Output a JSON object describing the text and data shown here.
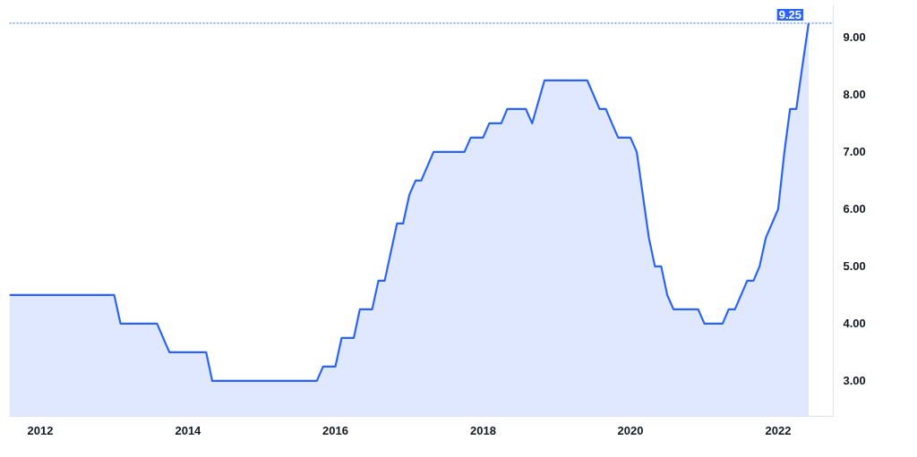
{
  "chart_data": {
    "type": "area",
    "color": "#2962ff",
    "x": [
      "2011-08",
      "2013-01",
      "2013-02",
      "2013-08",
      "2013-10",
      "2014-04",
      "2014-05",
      "2015-10",
      "2015-11",
      "2016-01",
      "2016-02",
      "2016-04",
      "2016-05",
      "2016-07",
      "2016-08",
      "2016-09",
      "2016-11",
      "2016-12",
      "2017-01",
      "2017-02",
      "2017-03",
      "2017-05",
      "2017-10",
      "2017-11",
      "2018-01",
      "2018-02",
      "2018-04",
      "2018-05",
      "2018-08",
      "2018-09",
      "2018-11",
      "2019-06",
      "2019-08",
      "2019-09",
      "2019-10",
      "2019-11",
      "2020-01",
      "2020-02",
      "2020-04",
      "2020-05",
      "2020-06",
      "2020-07",
      "2020-08",
      "2020-12",
      "2021-01",
      "2021-04",
      "2021-05",
      "2021-06",
      "2021-08",
      "2021-09",
      "2021-10",
      "2021-11",
      "2022-01",
      "2022-02",
      "2022-03",
      "2022-04",
      "2022-05",
      "2022-06"
    ],
    "values": [
      4.5,
      4.5,
      4.0,
      4.0,
      3.5,
      3.5,
      3.0,
      3.0,
      3.25,
      3.25,
      3.75,
      3.75,
      4.25,
      4.25,
      4.75,
      4.75,
      5.75,
      5.75,
      6.25,
      6.5,
      6.5,
      7.0,
      7.0,
      7.25,
      7.25,
      7.5,
      7.5,
      7.75,
      7.75,
      7.5,
      8.25,
      8.25,
      7.75,
      7.75,
      7.5,
      7.25,
      7.25,
      7.0,
      5.5,
      5.0,
      5.0,
      4.5,
      4.25,
      4.25,
      4.0,
      4.0,
      4.25,
      4.25,
      4.75,
      4.75,
      5.0,
      5.5,
      6.0,
      7.0,
      7.75,
      7.75,
      8.5,
      9.25
    ],
    "xlim": [
      "2011-08",
      "2022-10"
    ],
    "xticks": [
      "2012",
      "2014",
      "2016",
      "2018",
      "2020",
      "2022"
    ],
    "ylim": [
      2.38,
      9.57
    ],
    "yticks": [
      {
        "value": 3,
        "label": "3.00"
      },
      {
        "value": 4,
        "label": "4.00"
      },
      {
        "value": 5,
        "label": "5.00"
      },
      {
        "value": 6,
        "label": "6.00"
      },
      {
        "value": 7,
        "label": "7.00"
      },
      {
        "value": 8,
        "label": "8.00"
      },
      {
        "value": 9,
        "label": "9.00"
      }
    ],
    "ref_lines": [
      {
        "axis": "y",
        "value": 9.25,
        "label": "9.25",
        "color": "#2962ff",
        "line_style": "dotted"
      }
    ],
    "grid": false
  }
}
